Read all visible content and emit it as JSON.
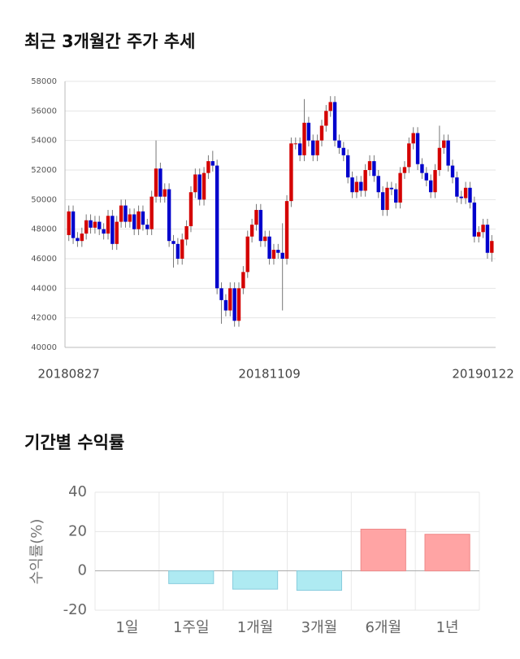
{
  "chart_data": [
    {
      "type": "candlestick",
      "title": "최근 3개월간 주가 추세",
      "categories": [
        "20180827",
        null,
        null,
        null,
        null,
        null,
        null,
        null,
        null,
        null,
        null,
        null,
        null,
        null,
        null,
        null,
        null,
        null,
        null,
        null,
        null,
        null,
        null,
        null,
        null,
        null,
        null,
        null,
        null,
        null,
        null,
        null,
        null,
        null,
        null,
        null,
        null,
        null,
        null,
        null,
        null,
        null,
        null,
        null,
        null,
        null,
        "20181109",
        null,
        null,
        null,
        null,
        null,
        null,
        null,
        null,
        null,
        null,
        null,
        null,
        null,
        null,
        null,
        null,
        null,
        null,
        null,
        null,
        null,
        null,
        null,
        null,
        null,
        null,
        null,
        null,
        null,
        null,
        null,
        null,
        null,
        null,
        null,
        null,
        null,
        null,
        null,
        null,
        null,
        null,
        null,
        null,
        null,
        null,
        null,
        null,
        "20190122",
        null,
        null
      ],
      "open": [
        47600,
        49200,
        47400,
        47200,
        47700,
        48600,
        48100,
        48500,
        48000,
        47700,
        48900,
        47000,
        48500,
        49600,
        48500,
        49000,
        48000,
        49200,
        48300,
        48000,
        50200,
        52100,
        50200,
        50700,
        47200,
        47000,
        46000,
        47300,
        48200,
        50500,
        51700,
        50000,
        51800,
        52600,
        52300,
        44000,
        43200,
        42500,
        44000,
        41800,
        44000,
        45100,
        47500,
        48300,
        49300,
        47200,
        47500,
        46000,
        46600,
        46400,
        46000,
        49900,
        53800,
        53800,
        53000,
        55200,
        54000,
        53000,
        54000,
        55000,
        56000,
        56600,
        54000,
        53500,
        53000,
        51500,
        50500,
        51200,
        50600,
        52000,
        52600,
        51600,
        50500,
        49300,
        50800,
        50700,
        49800,
        51800,
        52200,
        53800,
        54500,
        52400,
        51800,
        51300,
        50500,
        52000,
        53500,
        54000,
        52300,
        51500,
        50200,
        50100,
        50800,
        49800,
        47500,
        47800,
        48300,
        46400
      ],
      "high": [
        49600,
        49600,
        47800,
        48100,
        49000,
        49000,
        48900,
        48900,
        48400,
        49300,
        49300,
        48900,
        50000,
        50000,
        49400,
        49400,
        49600,
        49600,
        48700,
        50600,
        54000,
        52500,
        51100,
        51100,
        47600,
        47400,
        47700,
        48600,
        50900,
        52100,
        52100,
        52200,
        53000,
        53300,
        52700,
        44400,
        43600,
        44400,
        44400,
        44400,
        45500,
        47900,
        48700,
        49700,
        49700,
        47900,
        47900,
        47000,
        47000,
        48400,
        50300,
        54200,
        54200,
        54200,
        56800,
        55600,
        54400,
        54400,
        55400,
        56400,
        57000,
        57000,
        54400,
        53900,
        53400,
        51900,
        51600,
        51600,
        52400,
        53000,
        53000,
        52000,
        50900,
        51200,
        51200,
        51100,
        52200,
        52600,
        54200,
        54900,
        54900,
        52800,
        52200,
        51700,
        52400,
        55000,
        54400,
        54400,
        52700,
        51900,
        50600,
        51200,
        51200,
        50200,
        48200,
        48700,
        48700,
        47600
      ],
      "low": [
        47200,
        47000,
        46800,
        46800,
        47300,
        47700,
        47700,
        47600,
        47300,
        47300,
        46600,
        46600,
        48100,
        48100,
        48100,
        47600,
        47600,
        47900,
        47600,
        47600,
        49800,
        49800,
        49800,
        46800,
        45400,
        45600,
        45600,
        46900,
        47800,
        50100,
        49600,
        49600,
        51400,
        51900,
        43600,
        41600,
        42100,
        42100,
        41400,
        41400,
        43600,
        44700,
        47100,
        47900,
        46800,
        46800,
        45600,
        45600,
        46000,
        42500,
        45600,
        49500,
        53400,
        52600,
        52600,
        53600,
        52600,
        52600,
        53600,
        54600,
        55600,
        53600,
        53100,
        52600,
        51100,
        50100,
        50100,
        50200,
        50200,
        51600,
        51200,
        50100,
        48900,
        48900,
        50300,
        49400,
        49400,
        51400,
        51800,
        53400,
        52000,
        51400,
        50900,
        50100,
        50100,
        51600,
        53100,
        51900,
        51100,
        49800,
        49700,
        49700,
        49400,
        47100,
        47100,
        47400,
        46000,
        45800
      ],
      "close": [
        49200,
        47400,
        47200,
        47700,
        48600,
        48100,
        48500,
        48000,
        47700,
        48900,
        47000,
        48500,
        49600,
        48500,
        49000,
        48000,
        49200,
        48300,
        48000,
        50200,
        52100,
        50200,
        50700,
        47200,
        47000,
        46000,
        47300,
        48200,
        50500,
        51700,
        50000,
        51800,
        52600,
        52300,
        44000,
        43200,
        42500,
        44000,
        41800,
        44000,
        45100,
        47500,
        48300,
        49300,
        47200,
        47500,
        46000,
        46600,
        46400,
        46000,
        49900,
        53800,
        53800,
        53000,
        55200,
        54000,
        53000,
        54000,
        55000,
        56000,
        56600,
        54000,
        53500,
        53000,
        51500,
        50500,
        51200,
        50600,
        52000,
        52600,
        51600,
        50500,
        49300,
        50800,
        50700,
        49800,
        51800,
        52200,
        53800,
        54500,
        52400,
        51800,
        51300,
        50500,
        52000,
        53500,
        54000,
        52300,
        51500,
        50200,
        50100,
        50800,
        49800,
        47500,
        47800,
        48300,
        46400,
        47200
      ],
      "up_color": "#d40000",
      "down_color": "#0000cc",
      "ylim": [
        40000,
        58000
      ],
      "yticks": [
        40000,
        42000,
        44000,
        46000,
        48000,
        50000,
        52000,
        54000,
        56000,
        58000
      ],
      "grid": true
    },
    {
      "type": "bar",
      "title": "기간별 수익률",
      "ylabel": "수익률(%)",
      "categories": [
        "1일",
        "1주일",
        "1개월",
        "3개월",
        "6개월",
        "1년"
      ],
      "values": [
        0,
        -6.5,
        -9.3,
        -9.9,
        21.2,
        18.6
      ],
      "positive_color": "#ffa4a4",
      "negative_color": "#aeeaf2",
      "ylim": [
        -20,
        40
      ],
      "yticks": [
        -20,
        0,
        20,
        40
      ],
      "grid": true
    }
  ]
}
